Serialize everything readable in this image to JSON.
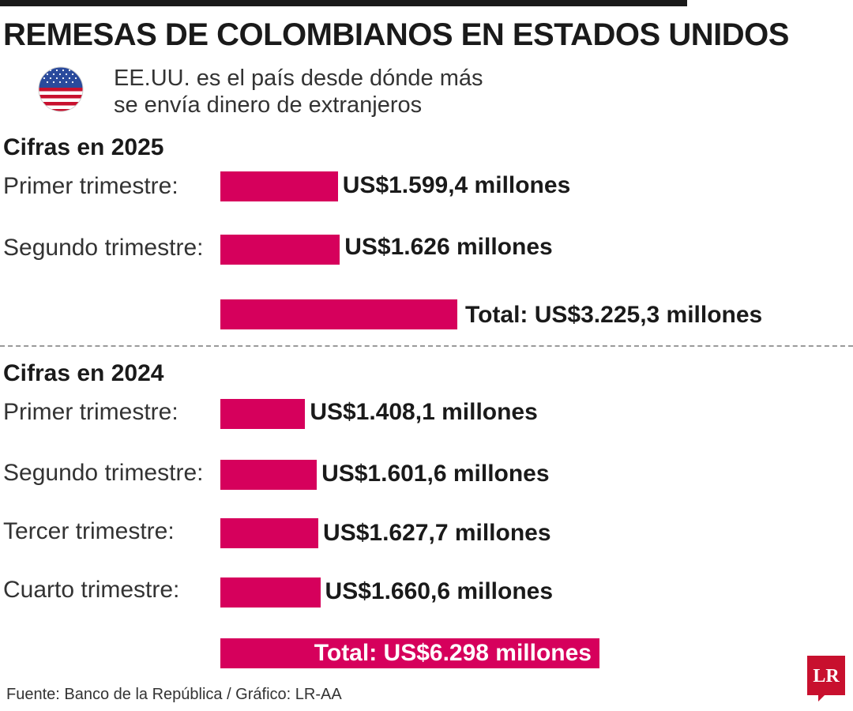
{
  "header": {
    "title": "REMESAS DE COLOMBIANOS EN ESTADOS UNIDOS",
    "subtitle_line1": "EE.UU. es el país desde dónde más",
    "subtitle_line2": "se envía dinero de extranjeros"
  },
  "colors": {
    "bar": "#d6005c",
    "text": "#1a1a1a",
    "logo": "#c8102e"
  },
  "icons": {
    "flag": "us-flag-icon",
    "logo": "lr-logo"
  },
  "chart_data": [
    {
      "type": "bar",
      "orientation": "horizontal",
      "title": "Cifras en 2025",
      "unit": "US$ millones",
      "categories": [
        "Primer trimestre:",
        "Segundo trimestre:"
      ],
      "values": [
        1599.4,
        1626
      ],
      "value_labels": [
        "US$1.599,4 millones",
        "US$1.626 millones"
      ],
      "total": 3225.3,
      "total_label": "Total: US$3.225,3 millones",
      "grid": false
    },
    {
      "type": "bar",
      "orientation": "horizontal",
      "title": "Cifras en 2024",
      "unit": "US$ millones",
      "categories": [
        "Primer trimestre:",
        "Segundo trimestre:",
        "Tercer trimestre:",
        "Cuarto trimestre:"
      ],
      "values": [
        1408.1,
        1601.6,
        1627.7,
        1660.6
      ],
      "value_labels": [
        "US$1.408,1 millones",
        "US$1.601,6 millones",
        "US$1.627,7 millones",
        "US$1.660,6 millones"
      ],
      "total": 6298,
      "total_label": "Total: US$6.298 millones",
      "grid": false
    }
  ],
  "footer": {
    "source": "Fuente: Banco de la República / Gráfico: LR-AA",
    "logo_text": "LR"
  }
}
